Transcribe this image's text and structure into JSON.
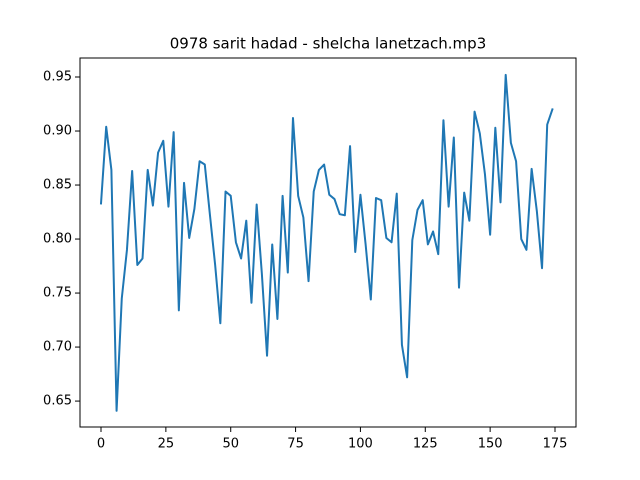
{
  "chart_data": {
    "type": "line",
    "title": "0978 sarit hadad - shelcha lanetzach.mp3",
    "x": [
      0,
      2,
      4,
      6,
      8,
      10,
      12,
      14,
      16,
      18,
      20,
      22,
      24,
      26,
      28,
      30,
      32,
      34,
      36,
      38,
      40,
      42,
      44,
      46,
      48,
      50,
      52,
      54,
      56,
      58,
      60,
      62,
      64,
      66,
      68,
      70,
      72,
      74,
      76,
      78,
      80,
      82,
      84,
      86,
      88,
      90,
      92,
      94,
      96,
      98,
      100,
      102,
      104,
      106,
      108,
      110,
      112,
      114,
      116,
      118,
      120,
      122,
      124,
      126,
      128,
      130,
      132,
      134,
      136,
      138,
      140,
      142,
      144,
      146,
      148,
      150,
      152,
      154,
      156,
      158,
      160,
      162,
      164,
      166,
      168,
      170,
      172,
      174
    ],
    "series": [
      {
        "color": "#1f77b4",
        "values": [
          0.833,
          0.904,
          0.864,
          0.641,
          0.745,
          0.79,
          0.863,
          0.776,
          0.782,
          0.864,
          0.831,
          0.88,
          0.891,
          0.83,
          0.899,
          0.734,
          0.852,
          0.801,
          0.828,
          0.872,
          0.869,
          0.822,
          0.776,
          0.722,
          0.844,
          0.84,
          0.797,
          0.782,
          0.817,
          0.741,
          0.832,
          0.768,
          0.692,
          0.795,
          0.726,
          0.84,
          0.769,
          0.912,
          0.84,
          0.82,
          0.761,
          0.844,
          0.864,
          0.869,
          0.841,
          0.837,
          0.823,
          0.822,
          0.886,
          0.788,
          0.841,
          0.795,
          0.744,
          0.838,
          0.836,
          0.801,
          0.797,
          0.842,
          0.702,
          0.672,
          0.799,
          0.827,
          0.836,
          0.795,
          0.807,
          0.786,
          0.91,
          0.83,
          0.894,
          0.755,
          0.843,
          0.817,
          0.918,
          0.898,
          0.86,
          0.804,
          0.903,
          0.834,
          0.952,
          0.889,
          0.872,
          0.8,
          0.79,
          0.865,
          0.826,
          0.773,
          0.906,
          0.92
        ]
      }
    ],
    "xlim": [
      -8.1,
      183.1
    ],
    "xticks": [
      0,
      25,
      50,
      75,
      100,
      125,
      150,
      175
    ],
    "ylim": [
      0.626,
      0.9676
    ],
    "yticks": [
      {
        "value": 0.65,
        "label": "0.65"
      },
      {
        "value": 0.7,
        "label": "0.70"
      },
      {
        "value": 0.75,
        "label": "0.75"
      },
      {
        "value": 0.8,
        "label": "0.80"
      },
      {
        "value": 0.85,
        "label": "0.85"
      },
      {
        "value": 0.9,
        "label": "0.90"
      },
      {
        "value": 0.95,
        "label": "0.95"
      }
    ],
    "grid": false
  }
}
